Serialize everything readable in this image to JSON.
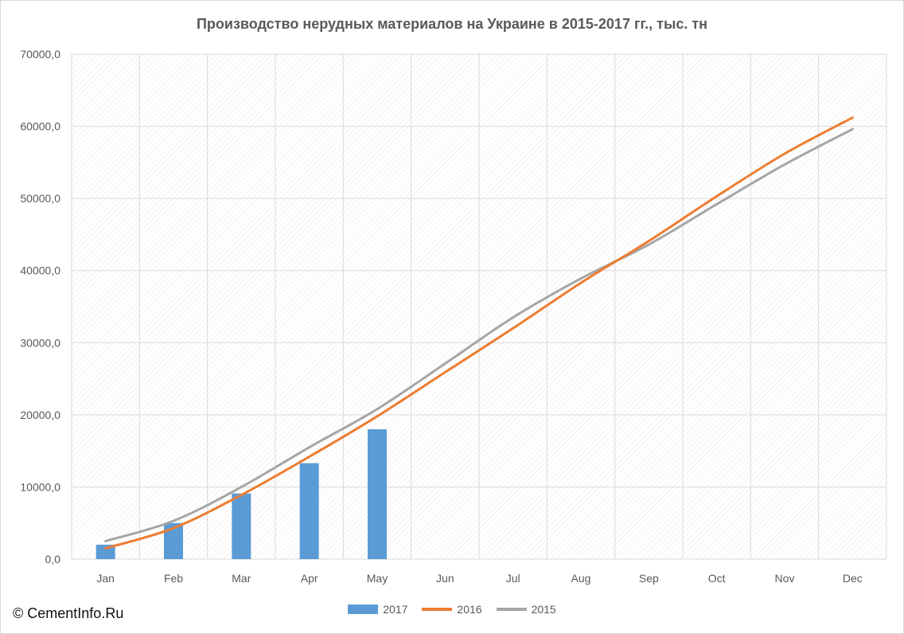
{
  "colors": {
    "series_2017": "#5b9bd5",
    "series_2016": "#ed7d31",
    "series_2015": "#a5a5a5",
    "grid": "#d9d9d9",
    "text": "#595959"
  },
  "copyright": "© CementInfo.Ru",
  "chart_data": {
    "type": "bar",
    "title": "Производство нерудных материалов на Украине в 2015-2017 гг., тыс. тн",
    "xlabel": "",
    "ylabel": "",
    "categories": [
      "Jan",
      "Feb",
      "Mar",
      "Apr",
      "May",
      "Jun",
      "Jul",
      "Aug",
      "Sep",
      "Oct",
      "Nov",
      "Dec"
    ],
    "ylim": [
      0,
      70000
    ],
    "yticks": [
      "0,0",
      "10000,0",
      "20000,0",
      "30000,0",
      "40000,0",
      "50000,0",
      "60000,0",
      "70000,0"
    ],
    "grid": true,
    "legend_position": "bottom",
    "series": [
      {
        "name": "2017",
        "type": "bar",
        "values": [
          2000,
          5000,
          9100,
          13300,
          18000,
          null,
          null,
          null,
          null,
          null,
          null,
          null
        ]
      },
      {
        "name": "2016",
        "type": "line",
        "values": [
          1500,
          4300,
          8900,
          14200,
          19800,
          25900,
          32000,
          38300,
          44100,
          50300,
          56200,
          61200
        ]
      },
      {
        "name": "2015",
        "type": "line",
        "values": [
          2500,
          5300,
          10000,
          15500,
          20800,
          27100,
          33500,
          38900,
          43600,
          49200,
          54700,
          59600
        ]
      }
    ]
  }
}
